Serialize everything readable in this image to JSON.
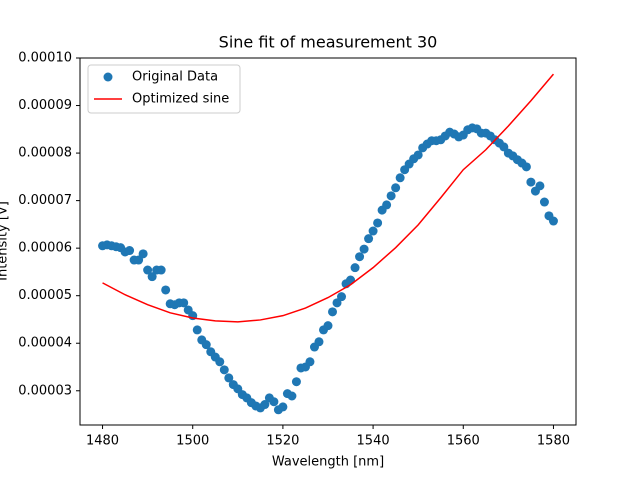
{
  "chart_data": {
    "type": "scatter-line",
    "title": "Sine fit of measurement 30",
    "x_label": "Wavelength [nm]",
    "y_label": "Intensity [V]",
    "xlim": [
      1475,
      1585
    ],
    "ylim": [
      2.28e-05,
      0.0001
    ],
    "xticks": [
      1480,
      1500,
      1520,
      1540,
      1560,
      1580
    ],
    "yticks": [
      3e-05,
      4e-05,
      5e-05,
      6e-05,
      7e-05,
      8e-05,
      9e-05,
      {
        "value": 0.0001,
        "label": "0.00010"
      }
    ],
    "legend": "upper left",
    "series": [
      {
        "name": "Original Data",
        "kind": "scatter",
        "color": "#1f77b4",
        "x": [
          1480,
          1481,
          1482,
          1483,
          1484,
          1485,
          1486,
          1487,
          1488,
          1489,
          1490,
          1491,
          1492,
          1493,
          1494,
          1495,
          1496,
          1497,
          1498,
          1499,
          1500,
          1501,
          1502,
          1503,
          1504,
          1505,
          1506,
          1507,
          1508,
          1509,
          1510,
          1511,
          1512,
          1513,
          1514,
          1515,
          1516,
          1517,
          1518,
          1519,
          1520,
          1521,
          1522,
          1523,
          1524,
          1525,
          1526,
          1527,
          1528,
          1529,
          1530,
          1531,
          1532,
          1533,
          1534,
          1535,
          1536,
          1537,
          1538,
          1539,
          1540,
          1541,
          1542,
          1543,
          1544,
          1545,
          1546,
          1547,
          1548,
          1549,
          1550,
          1551,
          1552,
          1553,
          1554,
          1555,
          1556,
          1557,
          1558,
          1559,
          1560,
          1561,
          1562,
          1563,
          1564,
          1565,
          1566,
          1567,
          1568,
          1569,
          1570,
          1571,
          1572,
          1573,
          1574,
          1575,
          1576,
          1577,
          1578,
          1579,
          1580
        ],
        "values": [
          6.05e-05,
          6.07e-05,
          6.05e-05,
          6.03e-05,
          6.01e-05,
          5.92e-05,
          5.95e-05,
          5.75e-05,
          5.75e-05,
          5.88e-05,
          5.54e-05,
          5.4e-05,
          5.54e-05,
          5.54e-05,
          5.12e-05,
          4.83e-05,
          4.81e-05,
          4.85e-05,
          4.85e-05,
          4.7e-05,
          4.58e-05,
          4.28e-05,
          4.07e-05,
          3.97e-05,
          3.82e-05,
          3.71e-05,
          3.61e-05,
          3.44e-05,
          3.27e-05,
          3.13e-05,
          3.04e-05,
          2.92e-05,
          2.85e-05,
          2.75e-05,
          2.68e-05,
          2.64e-05,
          2.71e-05,
          2.85e-05,
          2.77e-05,
          2.6e-05,
          2.66e-05,
          2.94e-05,
          2.89e-05,
          3.19e-05,
          3.48e-05,
          3.5e-05,
          3.61e-05,
          3.92e-05,
          4.03e-05,
          4.28e-05,
          4.37e-05,
          4.66e-05,
          4.85e-05,
          4.98e-05,
          5.25e-05,
          5.33e-05,
          5.59e-05,
          5.82e-05,
          5.98e-05,
          6.2e-05,
          6.36e-05,
          6.53e-05,
          6.8e-05,
          6.91e-05,
          7.1e-05,
          7.27e-05,
          7.48e-05,
          7.65e-05,
          7.77e-05,
          7.88e-05,
          7.96e-05,
          8.11e-05,
          8.19e-05,
          8.26e-05,
          8.26e-05,
          8.28e-05,
          8.36e-05,
          8.44e-05,
          8.4e-05,
          8.34e-05,
          8.38e-05,
          8.49e-05,
          8.53e-05,
          8.51e-05,
          8.42e-05,
          8.42e-05,
          8.36e-05,
          8.28e-05,
          8.21e-05,
          8.13e-05,
          8e-05,
          7.94e-05,
          7.86e-05,
          7.79e-05,
          7.71e-05,
          7.39e-05,
          7.2e-05,
          7.31e-05,
          6.97e-05,
          6.68e-05,
          6.57e-05
        ]
      },
      {
        "name": "Optimized sine",
        "kind": "line",
        "color": "#ff0000",
        "x": [
          1480,
          1485,
          1490,
          1495,
          1500,
          1505,
          1510,
          1515,
          1520,
          1525,
          1530,
          1535,
          1540,
          1545,
          1550,
          1555,
          1560,
          1565,
          1570,
          1575,
          1580
        ],
        "values": [
          5.27e-05,
          5.02e-05,
          4.81e-05,
          4.64e-05,
          4.53e-05,
          4.47e-05,
          4.45e-05,
          4.49e-05,
          4.58e-05,
          4.74e-05,
          4.96e-05,
          5.23e-05,
          5.59e-05,
          6.01e-05,
          6.49e-05,
          7.06e-05,
          7.65e-05,
          8.07e-05,
          8.57e-05,
          9.1e-05,
          9.66e-05
        ]
      }
    ]
  }
}
